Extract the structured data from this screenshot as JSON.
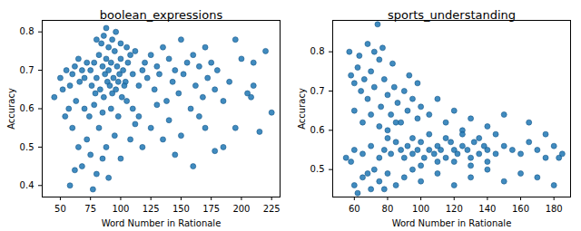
{
  "chart_data": [
    {
      "type": "scatter",
      "title": "boolean_expressions",
      "x_label": "Word Number in Rationale",
      "y_label": "Accuracy",
      "color": "#1f77b4",
      "marker": "o",
      "grid": false,
      "xlim": [
        35,
        232
      ],
      "xticks": [
        50,
        75,
        100,
        125,
        150,
        175,
        200,
        225
      ],
      "ylim": [
        0.37,
        0.83
      ],
      "yticks": [
        0.4,
        0.5,
        0.6,
        0.7,
        0.8
      ],
      "x": [
        75,
        78,
        80,
        82,
        85,
        87,
        88,
        90,
        92,
        94,
        95,
        97,
        99,
        100,
        102,
        104,
        106,
        108,
        110,
        76,
        79,
        83,
        86,
        89,
        91,
        93,
        96,
        98,
        101,
        103,
        84,
        86,
        90,
        93,
        96,
        80,
        88,
        100,
        105,
        112,
        72,
        70,
        68,
        65,
        66,
        62,
        60,
        58,
        55,
        52,
        50,
        45,
        57,
        63,
        70,
        74,
        78,
        85,
        92,
        98,
        105,
        110,
        115,
        118,
        120,
        122,
        125,
        128,
        130,
        132,
        135,
        138,
        140,
        143,
        145,
        148,
        150,
        152,
        155,
        158,
        160,
        162,
        165,
        168,
        170,
        172,
        175,
        178,
        180,
        185,
        190,
        195,
        200,
        205,
        210,
        215,
        220,
        225,
        60,
        65,
        68,
        72,
        75,
        80,
        82,
        88,
        90,
        95,
        100,
        108,
        112,
        118,
        125,
        135,
        145,
        150,
        160,
        165,
        170,
        178,
        185,
        54,
        58,
        62,
        115,
        140,
        77,
        85,
        130,
        195,
        210,
        208
      ],
      "values": [
        0.7,
        0.72,
        0.68,
        0.74,
        0.71,
        0.69,
        0.73,
        0.7,
        0.72,
        0.68,
        0.75,
        0.71,
        0.69,
        0.73,
        0.7,
        0.67,
        0.72,
        0.74,
        0.69,
        0.66,
        0.64,
        0.65,
        0.63,
        0.67,
        0.66,
        0.64,
        0.65,
        0.67,
        0.63,
        0.66,
        0.77,
        0.79,
        0.76,
        0.78,
        0.8,
        0.78,
        0.81,
        0.77,
        0.76,
        0.75,
        0.72,
        0.68,
        0.7,
        0.73,
        0.67,
        0.71,
        0.69,
        0.66,
        0.7,
        0.65,
        0.68,
        0.63,
        0.6,
        0.62,
        0.6,
        0.58,
        0.61,
        0.59,
        0.6,
        0.58,
        0.62,
        0.6,
        0.66,
        0.7,
        0.72,
        0.68,
        0.74,
        0.65,
        0.71,
        0.69,
        0.76,
        0.62,
        0.73,
        0.67,
        0.7,
        0.64,
        0.78,
        0.69,
        0.72,
        0.6,
        0.74,
        0.66,
        0.71,
        0.63,
        0.76,
        0.68,
        0.72,
        0.65,
        0.7,
        0.62,
        0.67,
        0.78,
        0.73,
        0.64,
        0.66,
        0.54,
        0.75,
        0.59,
        0.55,
        0.5,
        0.45,
        0.52,
        0.48,
        0.43,
        0.55,
        0.5,
        0.42,
        0.53,
        0.47,
        0.52,
        0.56,
        0.5,
        0.55,
        0.52,
        0.48,
        0.53,
        0.45,
        0.58,
        0.55,
        0.49,
        0.5,
        0.58,
        0.4,
        0.44,
        0.58,
        0.57,
        0.39,
        0.47,
        0.61,
        0.55,
        0.72,
        0.63
      ]
    },
    {
      "type": "scatter",
      "title": "sports_understanding",
      "x_label": "Word Number in Rationale",
      "y_label": "Accuracy",
      "color": "#1f77b4",
      "marker": "o",
      "grid": false,
      "xlim": [
        47,
        190
      ],
      "xticks": [
        60,
        80,
        100,
        120,
        140,
        160,
        180
      ],
      "ylim": [
        0.43,
        0.88
      ],
      "yticks": [
        0.5,
        0.6,
        0.7,
        0.8
      ],
      "x": [
        58,
        60,
        62,
        64,
        66,
        68,
        70,
        72,
        74,
        75,
        76,
        78,
        80,
        82,
        84,
        86,
        88,
        90,
        92,
        95,
        98,
        100,
        60,
        65,
        70,
        75,
        80,
        85,
        105,
        110,
        115,
        120,
        125,
        130,
        140,
        150,
        165,
        57,
        63,
        68,
        72,
        77,
        83,
        93,
        98,
        55,
        60,
        65,
        70,
        75,
        78,
        82,
        85,
        88,
        90,
        92,
        95,
        98,
        100,
        102,
        105,
        108,
        110,
        112,
        115,
        118,
        120,
        122,
        125,
        128,
        130,
        132,
        135,
        138,
        140,
        145,
        150,
        155,
        160,
        165,
        170,
        175,
        180,
        185,
        95,
        105,
        115,
        125,
        135,
        145,
        80,
        110,
        120,
        140,
        100,
        130,
        60,
        65,
        70,
        72,
        75,
        80,
        85,
        90,
        95,
        100,
        110,
        120,
        130,
        140,
        150,
        160,
        170,
        180,
        183,
        62,
        68,
        78,
        58,
        175
      ],
      "values": [
        0.74,
        0.72,
        0.76,
        0.7,
        0.73,
        0.68,
        0.75,
        0.71,
        0.87,
        0.78,
        0.66,
        0.73,
        0.69,
        0.64,
        0.71,
        0.67,
        0.62,
        0.7,
        0.65,
        0.68,
        0.63,
        0.66,
        0.65,
        0.62,
        0.64,
        0.61,
        0.6,
        0.62,
        0.64,
        0.68,
        0.62,
        0.65,
        0.6,
        0.63,
        0.61,
        0.64,
        0.62,
        0.8,
        0.79,
        0.82,
        0.8,
        0.81,
        0.77,
        0.74,
        0.72,
        0.53,
        0.55,
        0.54,
        0.56,
        0.53,
        0.55,
        0.54,
        0.57,
        0.55,
        0.53,
        0.56,
        0.54,
        0.55,
        0.57,
        0.53,
        0.55,
        0.54,
        0.56,
        0.55,
        0.53,
        0.57,
        0.55,
        0.54,
        0.56,
        0.55,
        0.53,
        0.57,
        0.54,
        0.56,
        0.55,
        0.54,
        0.56,
        0.55,
        0.54,
        0.57,
        0.55,
        0.53,
        0.56,
        0.54,
        0.58,
        0.59,
        0.58,
        0.59,
        0.58,
        0.59,
        0.58,
        0.52,
        0.52,
        0.52,
        0.51,
        0.51,
        0.46,
        0.48,
        0.45,
        0.5,
        0.47,
        0.49,
        0.46,
        0.48,
        0.5,
        0.47,
        0.49,
        0.46,
        0.48,
        0.5,
        0.47,
        0.49,
        0.48,
        0.46,
        0.53,
        0.44,
        0.49,
        0.45,
        0.52,
        0.59
      ]
    }
  ]
}
